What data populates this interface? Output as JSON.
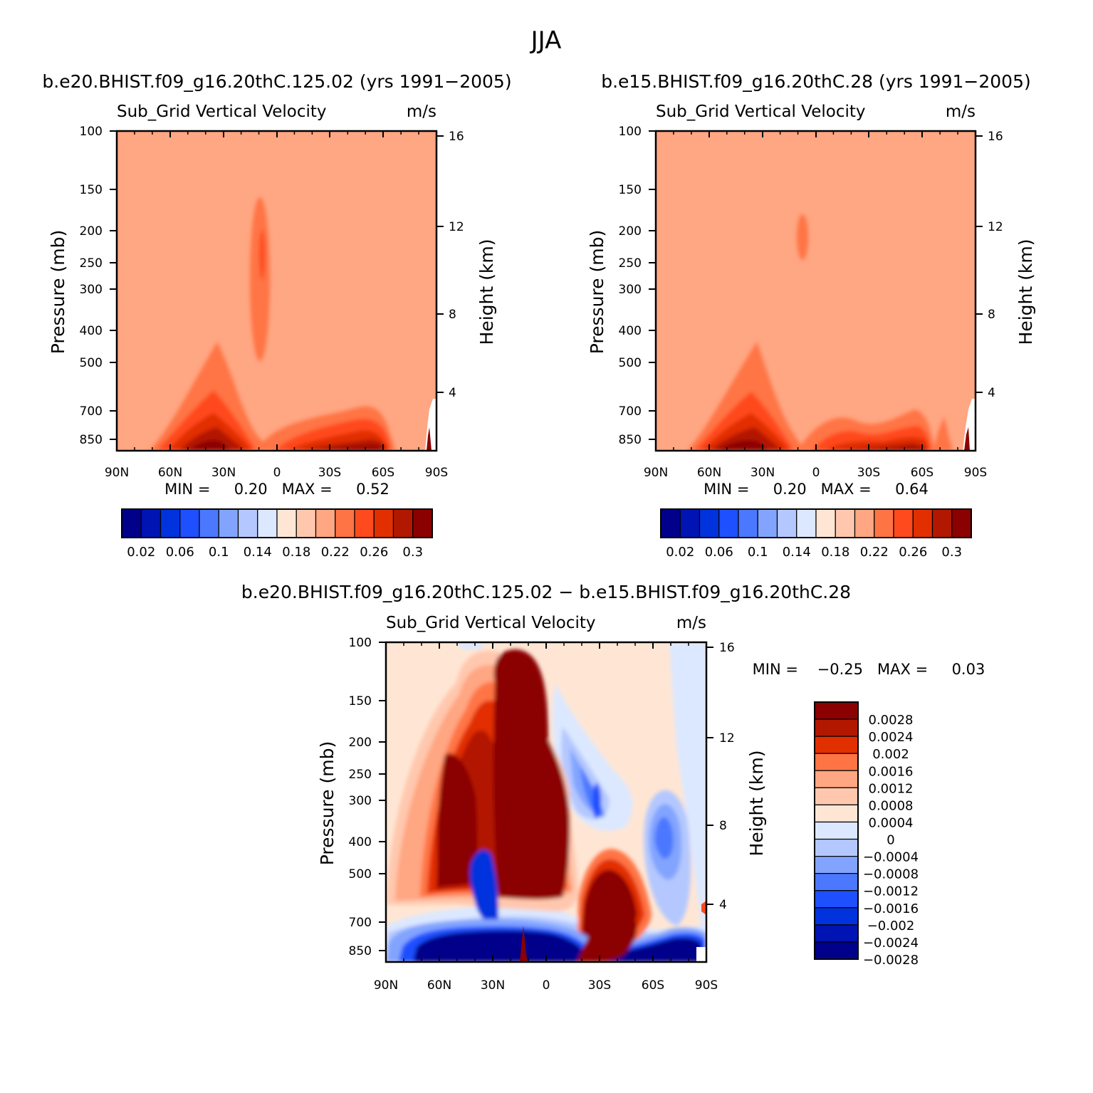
{
  "figure": {
    "title": "JJA"
  },
  "chart_data": [
    {
      "type": "heatmap",
      "id": "panel_left",
      "title": "b.e20.BHIST.f09_g16.20thC.125.02 (yrs 1991−2005)",
      "subtitle": "Sub_Grid Vertical Velocity",
      "units": "m/s",
      "ylabel": "Pressure (mb)",
      "ylabel_right": "Height (km)",
      "x_ticks": [
        "90N",
        "60N",
        "30N",
        "0",
        "30S",
        "60S",
        "90S"
      ],
      "y_ticks": [
        "100",
        "150",
        "200",
        "250",
        "300",
        "400",
        "500",
        "700",
        "850"
      ],
      "y_ticks_right": [
        "16",
        "12",
        "8",
        "4"
      ],
      "stats_label": "MIN =     0.20   MAX =     0.52",
      "colorbar": {
        "colors": [
          "#00008b",
          "#0013b3",
          "#0033dd",
          "#1e50ff",
          "#4b78ff",
          "#82a4ff",
          "#b4c8ff",
          "#dce8ff",
          "#ffe6d4",
          "#ffc8ae",
          "#ffa682",
          "#ff7444",
          "#ff4a1e",
          "#e22f00",
          "#b21800",
          "#8b0000"
        ],
        "labels": [
          "0.02",
          "0.06",
          "0.1",
          "0.14",
          "0.18",
          "0.22",
          "0.26",
          "0.3"
        ]
      }
    },
    {
      "type": "heatmap",
      "id": "panel_right",
      "title": "b.e15.BHIST.f09_g16.20thC.28 (yrs 1991−2005)",
      "subtitle": "Sub_Grid Vertical Velocity",
      "units": "m/s",
      "ylabel": "Pressure (mb)",
      "ylabel_right": "Height (km)",
      "x_ticks": [
        "90N",
        "60N",
        "30N",
        "0",
        "30S",
        "60S",
        "90S"
      ],
      "y_ticks": [
        "100",
        "150",
        "200",
        "250",
        "300",
        "400",
        "500",
        "700",
        "850"
      ],
      "y_ticks_right": [
        "16",
        "12",
        "8",
        "4"
      ],
      "stats_label": "MIN =     0.20   MAX =     0.64",
      "colorbar": {
        "colors": [
          "#00008b",
          "#0013b3",
          "#0033dd",
          "#1e50ff",
          "#4b78ff",
          "#82a4ff",
          "#b4c8ff",
          "#dce8ff",
          "#ffe6d4",
          "#ffc8ae",
          "#ffa682",
          "#ff7444",
          "#ff4a1e",
          "#e22f00",
          "#b21800",
          "#8b0000"
        ],
        "labels": [
          "0.02",
          "0.06",
          "0.1",
          "0.14",
          "0.18",
          "0.22",
          "0.26",
          "0.3"
        ]
      }
    },
    {
      "type": "heatmap",
      "id": "panel_diff",
      "title": "b.e20.BHIST.f09_g16.20thC.125.02 − b.e15.BHIST.f09_g16.20thC.28",
      "subtitle": "Sub_Grid Vertical Velocity",
      "units": "m/s",
      "ylabel": "Pressure (mb)",
      "ylabel_right": "Height (km)",
      "x_ticks": [
        "90N",
        "60N",
        "30N",
        "0",
        "30S",
        "60S",
        "90S"
      ],
      "y_ticks": [
        "100",
        "150",
        "200",
        "250",
        "300",
        "400",
        "500",
        "700",
        "850"
      ],
      "y_ticks_right": [
        "16",
        "12",
        "8",
        "4"
      ],
      "stats_label": "MIN =    −0.25   MAX =     0.03",
      "colorbar": {
        "colors": [
          "#8b0000",
          "#b21800",
          "#e22f00",
          "#ff7444",
          "#ffa682",
          "#ffc8ae",
          "#ffe6d4",
          "#dce8ff",
          "#b4c8ff",
          "#82a4ff",
          "#4b78ff",
          "#1e50ff",
          "#0033dd",
          "#0013b3",
          "#00008b"
        ],
        "labels": [
          "0.0028",
          "0.0024",
          "0.002",
          "0.0016",
          "0.0012",
          "0.0008",
          "0.0004",
          "0",
          "−0.0004",
          "−0.0008",
          "−0.0012",
          "−0.0016",
          "−0.002",
          "−0.0024",
          "−0.0028"
        ]
      }
    }
  ]
}
